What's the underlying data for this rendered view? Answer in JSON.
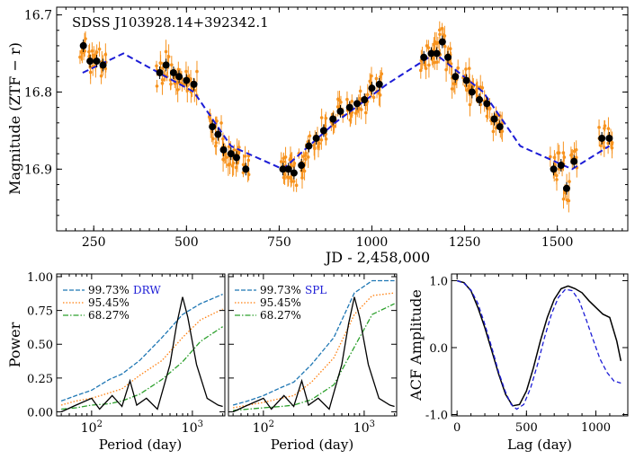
{
  "chart_data": [
    {
      "type": "scatter",
      "title": "SDSS J103928.14+392342.1",
      "xlabel": "JD - 2,458,000",
      "ylabel": "Magnitude (ZTF − r)",
      "xlim": [
        150,
        1690
      ],
      "ylim": [
        16.98,
        16.69
      ],
      "x_ticks": [
        "250",
        "500",
        "750",
        "1000",
        "1250",
        "1500"
      ],
      "y_ticks": [
        "16.7",
        "16.8",
        "16.9"
      ],
      "colors": {
        "points": "#f7931e",
        "binned": "#000000",
        "model": "#1c1cd6"
      },
      "series": [
        {
          "values": [
            [
              222,
              16.74
            ],
            [
              240,
              16.76
            ],
            [
              258,
              16.76
            ],
            [
              275,
              16.765
            ],
            [
              428,
              16.775
            ],
            [
              445,
              16.765
            ],
            [
              465,
              16.775
            ],
            [
              480,
              16.78
            ],
            [
              500,
              16.785
            ],
            [
              520,
              16.79
            ],
            [
              570,
              16.845
            ],
            [
              585,
              16.855
            ],
            [
              600,
              16.875
            ],
            [
              620,
              16.88
            ],
            [
              635,
              16.885
            ],
            [
              660,
              16.9
            ],
            [
              760,
              16.9
            ],
            [
              775,
              16.9
            ],
            [
              790,
              16.905
            ],
            [
              810,
              16.895
            ],
            [
              830,
              16.87
            ],
            [
              850,
              16.86
            ],
            [
              870,
              16.85
            ],
            [
              895,
              16.835
            ],
            [
              915,
              16.825
            ],
            [
              940,
              16.82
            ],
            [
              960,
              16.815
            ],
            [
              980,
              16.81
            ],
            [
              1000,
              16.795
            ],
            [
              1020,
              16.79
            ],
            [
              1140,
              16.755
            ],
            [
              1160,
              16.75
            ],
            [
              1175,
              16.75
            ],
            [
              1190,
              16.735
            ],
            [
              1205,
              16.755
            ],
            [
              1225,
              16.78
            ],
            [
              1255,
              16.785
            ],
            [
              1270,
              16.8
            ],
            [
              1290,
              16.81
            ],
            [
              1310,
              16.815
            ],
            [
              1330,
              16.835
            ],
            [
              1345,
              16.845
            ],
            [
              1490,
              16.9
            ],
            [
              1510,
              16.895
            ],
            [
              1525,
              16.925
            ],
            [
              1545,
              16.89
            ],
            [
              1620,
              16.86
            ],
            [
              1640,
              16.86
            ]
          ]
        },
        {
          "values": [
            [
              220,
              16.775
            ],
            [
              330,
              16.75
            ],
            [
              520,
              16.8
            ],
            [
              620,
              16.87
            ],
            [
              760,
              16.9
            ],
            [
              900,
              16.84
            ],
            [
              1040,
              16.79
            ],
            [
              1170,
              16.75
            ],
            [
              1300,
              16.8
            ],
            [
              1400,
              16.87
            ],
            [
              1540,
              16.9
            ],
            [
              1640,
              16.87
            ]
          ]
        }
      ]
    },
    {
      "type": "line",
      "xlabel": "Period (day)",
      "ylabel": "Power",
      "xscale": "log",
      "xlim": [
        45,
        2100
      ],
      "ylim": [
        -0.03,
        1.02
      ],
      "x_ticks": [
        "10^2",
        "10^3"
      ],
      "y_ticks": [
        "0.00",
        "0.25",
        "0.50",
        "0.75",
        "1.00"
      ],
      "legend": [
        "99.73%",
        "95.45%",
        "68.27%"
      ],
      "model_label": "DRW",
      "series": [
        {
          "name": "99.73%",
          "values": [
            [
              50,
              0.08
            ],
            [
              70,
              0.12
            ],
            [
              100,
              0.16
            ],
            [
              150,
              0.24
            ],
            [
              200,
              0.28
            ],
            [
              300,
              0.38
            ],
            [
              500,
              0.55
            ],
            [
              800,
              0.72
            ],
            [
              1200,
              0.8
            ],
            [
              2000,
              0.87
            ]
          ]
        },
        {
          "name": "95.45%",
          "values": [
            [
              50,
              0.05
            ],
            [
              70,
              0.08
            ],
            [
              100,
              0.1
            ],
            [
              150,
              0.14
            ],
            [
              200,
              0.17
            ],
            [
              300,
              0.27
            ],
            [
              500,
              0.38
            ],
            [
              800,
              0.55
            ],
            [
              1200,
              0.68
            ],
            [
              2000,
              0.76
            ]
          ]
        },
        {
          "name": "68.27%",
          "values": [
            [
              50,
              0.02
            ],
            [
              70,
              0.03
            ],
            [
              100,
              0.05
            ],
            [
              150,
              0.06
            ],
            [
              200,
              0.08
            ],
            [
              300,
              0.13
            ],
            [
              500,
              0.24
            ],
            [
              800,
              0.37
            ],
            [
              1200,
              0.52
            ],
            [
              2000,
              0.63
            ]
          ]
        },
        {
          "values": [
            [
              50,
              0.0
            ],
            [
              70,
              0.05
            ],
            [
              100,
              0.1
            ],
            [
              120,
              0.02
            ],
            [
              160,
              0.12
            ],
            [
              200,
              0.04
            ],
            [
              240,
              0.23
            ],
            [
              280,
              0.05
            ],
            [
              350,
              0.1
            ],
            [
              450,
              0.02
            ],
            [
              600,
              0.35
            ],
            [
              700,
              0.65
            ],
            [
              800,
              0.85
            ],
            [
              900,
              0.7
            ],
            [
              1100,
              0.35
            ],
            [
              1400,
              0.1
            ],
            [
              1800,
              0.05
            ],
            [
              2000,
              0.04
            ]
          ]
        }
      ]
    },
    {
      "type": "line",
      "xlabel": "Period (day)",
      "xscale": "log",
      "xlim": [
        45,
        2100
      ],
      "ylim": [
        -0.03,
        1.02
      ],
      "x_ticks": [
        "10^2",
        "10^3"
      ],
      "legend": [
        "99.73%",
        "95.45%",
        "68.27%"
      ],
      "model_label": "SPL",
      "series": [
        {
          "name": "99.73%",
          "values": [
            [
              50,
              0.05
            ],
            [
              70,
              0.08
            ],
            [
              100,
              0.12
            ],
            [
              150,
              0.18
            ],
            [
              200,
              0.22
            ],
            [
              300,
              0.35
            ],
            [
              500,
              0.55
            ],
            [
              800,
              0.88
            ],
            [
              1200,
              0.97
            ],
            [
              2000,
              0.97
            ]
          ]
        },
        {
          "name": "95.45%",
          "values": [
            [
              50,
              0.03
            ],
            [
              70,
              0.05
            ],
            [
              100,
              0.07
            ],
            [
              150,
              0.1
            ],
            [
              200,
              0.12
            ],
            [
              300,
              0.22
            ],
            [
              500,
              0.4
            ],
            [
              800,
              0.72
            ],
            [
              1200,
              0.86
            ],
            [
              2000,
              0.88
            ]
          ]
        },
        {
          "name": "68.27%",
          "values": [
            [
              50,
              0.01
            ],
            [
              70,
              0.02
            ],
            [
              100,
              0.03
            ],
            [
              150,
              0.04
            ],
            [
              200,
              0.05
            ],
            [
              300,
              0.09
            ],
            [
              500,
              0.2
            ],
            [
              800,
              0.48
            ],
            [
              1200,
              0.72
            ],
            [
              2000,
              0.8
            ]
          ]
        },
        {
          "values": [
            [
              50,
              0.0
            ],
            [
              70,
              0.05
            ],
            [
              100,
              0.1
            ],
            [
              120,
              0.02
            ],
            [
              160,
              0.12
            ],
            [
              200,
              0.04
            ],
            [
              240,
              0.23
            ],
            [
              280,
              0.05
            ],
            [
              350,
              0.1
            ],
            [
              450,
              0.02
            ],
            [
              600,
              0.35
            ],
            [
              700,
              0.65
            ],
            [
              800,
              0.85
            ],
            [
              900,
              0.7
            ],
            [
              1100,
              0.35
            ],
            [
              1400,
              0.1
            ],
            [
              1800,
              0.05
            ],
            [
              2000,
              0.04
            ]
          ]
        }
      ]
    },
    {
      "type": "line",
      "xlabel": "Lag (day)",
      "ylabel": "ACF Amplitude",
      "xlim": [
        -40,
        1230
      ],
      "ylim": [
        -1.02,
        1.1
      ],
      "x_ticks": [
        "0",
        "500",
        "1000"
      ],
      "y_ticks": [
        "1.0",
        "0.0",
        "-1.0"
      ],
      "series": [
        {
          "values": [
            [
              0,
              1.0
            ],
            [
              50,
              0.97
            ],
            [
              100,
              0.85
            ],
            [
              150,
              0.6
            ],
            [
              200,
              0.3
            ],
            [
              250,
              -0.05
            ],
            [
              300,
              -0.4
            ],
            [
              350,
              -0.7
            ],
            [
              400,
              -0.87
            ],
            [
              450,
              -0.85
            ],
            [
              500,
              -0.65
            ],
            [
              550,
              -0.3
            ],
            [
              600,
              0.1
            ],
            [
              650,
              0.45
            ],
            [
              700,
              0.72
            ],
            [
              750,
              0.88
            ],
            [
              800,
              0.92
            ],
            [
              850,
              0.88
            ],
            [
              900,
              0.82
            ],
            [
              950,
              0.7
            ],
            [
              1000,
              0.6
            ],
            [
              1050,
              0.5
            ],
            [
              1100,
              0.45
            ],
            [
              1150,
              0.1
            ],
            [
              1180,
              -0.2
            ]
          ]
        },
        {
          "values": [
            [
              0,
              1.0
            ],
            [
              50,
              0.96
            ],
            [
              100,
              0.86
            ],
            [
              150,
              0.66
            ],
            [
              200,
              0.35
            ],
            [
              250,
              0.0
            ],
            [
              300,
              -0.37
            ],
            [
              350,
              -0.67
            ],
            [
              390,
              -0.85
            ],
            [
              430,
              -0.92
            ],
            [
              480,
              -0.85
            ],
            [
              530,
              -0.6
            ],
            [
              580,
              -0.25
            ],
            [
              630,
              0.15
            ],
            [
              680,
              0.5
            ],
            [
              730,
              0.75
            ],
            [
              780,
              0.87
            ],
            [
              830,
              0.85
            ],
            [
              880,
              0.7
            ],
            [
              930,
              0.42
            ],
            [
              980,
              0.12
            ],
            [
              1030,
              -0.17
            ],
            [
              1080,
              -0.37
            ],
            [
              1130,
              -0.5
            ],
            [
              1180,
              -0.53
            ]
          ]
        }
      ]
    }
  ]
}
